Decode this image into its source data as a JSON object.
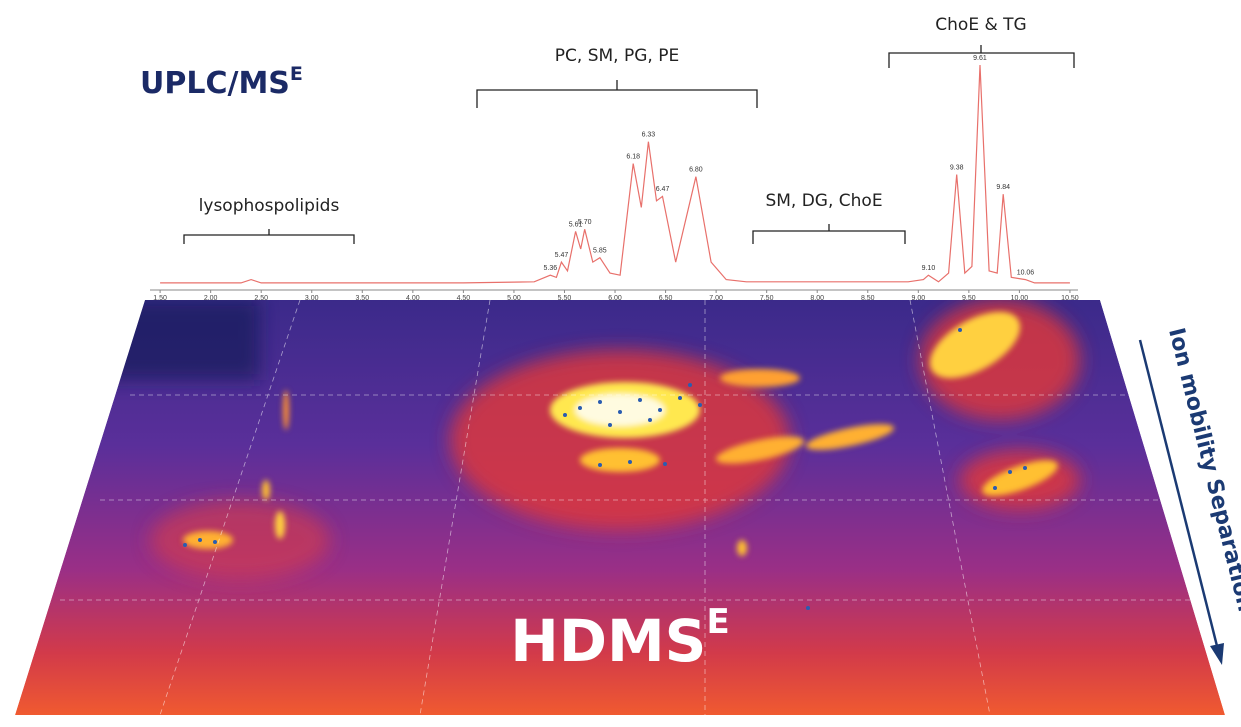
{
  "chart_data": {
    "type": "line",
    "title": "UPLC/MS",
    "title_sup": "E",
    "color": "#e8706b",
    "x": [
      1.5,
      2.3,
      2.4,
      2.5,
      4.5,
      5.2,
      5.36,
      5.42,
      5.47,
      5.53,
      5.61,
      5.66,
      5.7,
      5.78,
      5.85,
      5.95,
      6.05,
      6.18,
      6.26,
      6.33,
      6.41,
      6.47,
      6.6,
      6.8,
      6.95,
      7.1,
      7.3,
      8.9,
      9.05,
      9.1,
      9.2,
      9.3,
      9.38,
      9.46,
      9.53,
      9.61,
      9.7,
      9.78,
      9.84,
      9.92,
      10.06,
      10.15,
      10.5
    ],
    "values": [
      0.5,
      0.5,
      2,
      0.5,
      0.5,
      1,
      4,
      3,
      10,
      6,
      24,
      16,
      25,
      10,
      12,
      5,
      4,
      55,
      35,
      65,
      38,
      40,
      10,
      49,
      10,
      2,
      1,
      1,
      2,
      4,
      1,
      5,
      50,
      5,
      8,
      100,
      6,
      5,
      41,
      3,
      2,
      0.5,
      0.5
    ],
    "xlim": [
      1.4,
      10.55
    ],
    "ylim": [
      0,
      100
    ],
    "xticks": [
      {
        "value": 1.5,
        "label": "1.50"
      },
      {
        "value": 2,
        "label": "2.00"
      },
      {
        "value": 2.5,
        "label": "2.50"
      },
      {
        "value": 3,
        "label": "3.00"
      },
      {
        "value": 3.5,
        "label": "3.50"
      },
      {
        "value": 4,
        "label": "4.00"
      },
      {
        "value": 4.5,
        "label": "4.50"
      },
      {
        "value": 5,
        "label": "5.00"
      },
      {
        "value": 5.5,
        "label": "5.50"
      },
      {
        "value": 6,
        "label": "6.00"
      },
      {
        "value": 6.5,
        "label": "6.50"
      },
      {
        "value": 7,
        "label": "7.00"
      },
      {
        "value": 7.5,
        "label": "7.50"
      },
      {
        "value": 8,
        "label": "8.00"
      },
      {
        "value": 8.5,
        "label": "8.50"
      },
      {
        "value": 9,
        "label": "9.00"
      },
      {
        "value": 9.5,
        "label": "9.50"
      },
      {
        "value": 10,
        "label": "10.00"
      },
      {
        "value": 10.5,
        "label": "10.50"
      }
    ],
    "peaks": [
      {
        "x": 5.36,
        "label": "5.36"
      },
      {
        "x": 5.47,
        "label": "5.47"
      },
      {
        "x": 5.61,
        "label": "5.61"
      },
      {
        "x": 5.7,
        "label": "5.70"
      },
      {
        "x": 5.85,
        "label": "5.85"
      },
      {
        "x": 6.18,
        "label": "6.18"
      },
      {
        "x": 6.33,
        "label": "6.33"
      },
      {
        "x": 6.47,
        "label": "6.47"
      },
      {
        "x": 6.8,
        "label": "6.80"
      },
      {
        "x": 9.1,
        "label": "9.10"
      },
      {
        "x": 9.38,
        "label": "9.38"
      },
      {
        "x": 9.61,
        "label": "9.61"
      },
      {
        "x": 9.84,
        "label": "9.84"
      },
      {
        "x": 10.06,
        "label": "10.06"
      }
    ],
    "annotations": [
      "lysophospolipids",
      "PC, SM, PG, PE",
      "SM, DG, ChoE",
      "ChoE & TG"
    ],
    "heatmap_label": "HDMS",
    "heatmap_sup": "E",
    "arrow_label": "Ion mobility Separation"
  }
}
